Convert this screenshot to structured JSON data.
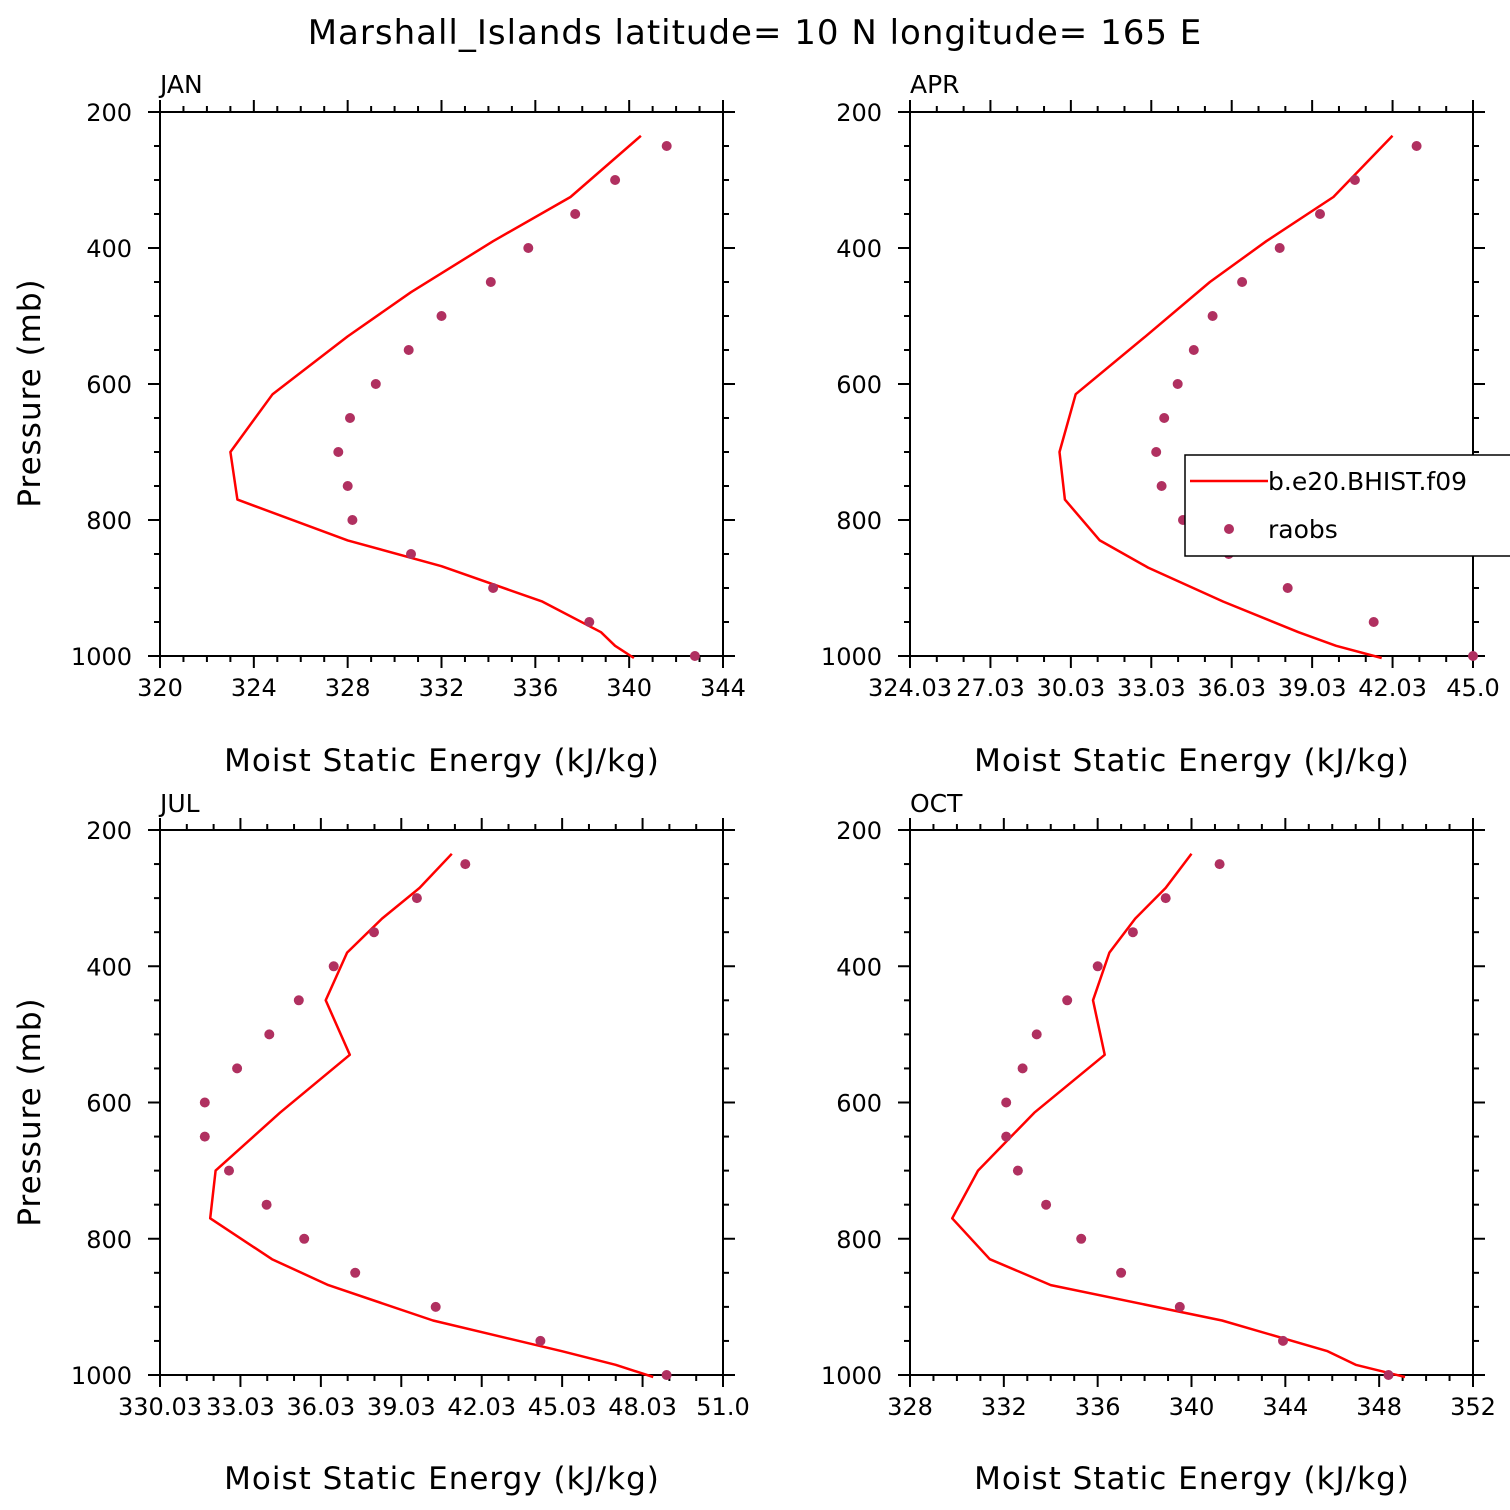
{
  "title": "Marshall_Islands  latitude= 10 N longitude= 165 E",
  "colors": {
    "model": "#ff0000",
    "obs": "#b03060",
    "axes": "#000000"
  },
  "legend": {
    "model_label": "b.e20.BHIST.f09",
    "obs_label": "raobs",
    "placement": "right-middle of APR panel"
  },
  "chart_data": [
    {
      "type": "line",
      "panel": "JAN",
      "xlabel": "Moist Static Energy (kJ/kg)",
      "ylabel": "Pressure (mb)",
      "xlim": [
        320,
        344
      ],
      "ylim": [
        1000,
        200
      ],
      "xtick_labels": [
        "320",
        "324",
        "328",
        "332",
        "336",
        "340",
        "344"
      ],
      "ytick_labels": [
        "200",
        "400",
        "600",
        "800",
        "1000"
      ],
      "series": [
        {
          "kind": "line",
          "pressure": [
            235,
            325,
            390,
            465,
            530,
            615,
            700,
            770,
            830,
            868,
            920,
            965,
            985,
            1003
          ],
          "values": [
            340.5,
            337.5,
            334.2,
            330.7,
            328.0,
            324.8,
            323.0,
            323.3,
            328.0,
            332.0,
            336.3,
            338.8,
            339.4,
            340.2
          ]
        },
        {
          "kind": "scatter",
          "pressure": [
            250,
            300,
            350,
            400,
            450,
            500,
            550,
            600,
            650,
            700,
            750,
            800,
            850,
            900,
            950,
            1000
          ],
          "values": [
            341.6,
            339.4,
            337.7,
            335.7,
            334.1,
            332.0,
            330.6,
            329.2,
            328.1,
            327.6,
            328.0,
            328.2,
            330.7,
            334.2,
            338.3,
            342.8
          ]
        }
      ]
    },
    {
      "type": "line",
      "panel": "APR",
      "xlabel": "Moist Static Energy (kJ/kg)",
      "ylabel": "",
      "xlim": [
        324.03,
        345.0
      ],
      "ylim": [
        1000,
        200
      ],
      "xtick_labels": [
        "324.03",
        "27.03",
        "30.03",
        "33.03",
        "36.03",
        "39.03",
        "42.03",
        "45.0"
      ],
      "ytick_labels": [
        "200",
        "400",
        "600",
        "800",
        "1000"
      ],
      "series": [
        {
          "kind": "line",
          "pressure": [
            235,
            325,
            390,
            450,
            530,
            615,
            700,
            770,
            830,
            870,
            920,
            965,
            985,
            1003
          ],
          "values": [
            342.0,
            339.8,
            337.3,
            335.2,
            332.8,
            330.2,
            329.6,
            329.8,
            331.1,
            332.9,
            335.7,
            338.5,
            339.9,
            341.6
          ]
        },
        {
          "kind": "scatter",
          "pressure": [
            250,
            300,
            350,
            400,
            450,
            500,
            550,
            600,
            650,
            700,
            750,
            800,
            850,
            900,
            950,
            1000
          ],
          "values": [
            342.9,
            340.6,
            339.3,
            337.8,
            336.4,
            335.3,
            334.6,
            334.0,
            333.5,
            333.2,
            333.4,
            334.2,
            335.9,
            338.1,
            341.3,
            345.0
          ]
        }
      ]
    },
    {
      "type": "line",
      "panel": "JUL",
      "xlabel": "Moist Static Energy (kJ/kg)",
      "ylabel": "Pressure (mb)",
      "xlim": [
        330.03,
        351.0
      ],
      "ylim": [
        1000,
        200
      ],
      "xtick_labels": [
        "330.03",
        "33.03",
        "36.03",
        "39.03",
        "42.03",
        "45.03",
        "48.03",
        "51.0"
      ],
      "ytick_labels": [
        "200",
        "400",
        "600",
        "800",
        "1000"
      ],
      "series": [
        {
          "kind": "line",
          "pressure": [
            235,
            285,
            330,
            380,
            450,
            530,
            615,
            700,
            770,
            830,
            868,
            920,
            965,
            985,
            1003
          ],
          "values": [
            340.9,
            339.7,
            338.3,
            337.0,
            336.2,
            337.1,
            334.5,
            332.1,
            331.9,
            334.2,
            336.3,
            340.2,
            345.0,
            347.0,
            348.4
          ]
        },
        {
          "kind": "scatter",
          "pressure": [
            250,
            300,
            350,
            400,
            450,
            500,
            550,
            600,
            650,
            700,
            750,
            800,
            850,
            900,
            950,
            1000
          ],
          "values": [
            341.4,
            339.6,
            338.0,
            336.5,
            335.2,
            334.1,
            332.9,
            331.7,
            331.7,
            332.6,
            334.0,
            335.4,
            337.3,
            340.3,
            344.2,
            348.9
          ]
        }
      ]
    },
    {
      "type": "line",
      "panel": "OCT",
      "xlabel": "Moist Static Energy (kJ/kg)",
      "ylabel": "",
      "xlim": [
        328,
        352
      ],
      "ylim": [
        1000,
        200
      ],
      "xtick_labels": [
        "328",
        "332",
        "336",
        "340",
        "344",
        "348",
        "352"
      ],
      "ytick_labels": [
        "200",
        "400",
        "600",
        "800",
        "1000"
      ],
      "series": [
        {
          "kind": "line",
          "pressure": [
            235,
            285,
            330,
            380,
            450,
            530,
            615,
            700,
            770,
            830,
            868,
            920,
            965,
            985,
            1003
          ],
          "values": [
            340.0,
            338.9,
            337.6,
            336.5,
            335.8,
            336.3,
            333.3,
            330.9,
            329.8,
            331.4,
            334.0,
            341.3,
            345.8,
            347.0,
            349.1
          ]
        },
        {
          "kind": "scatter",
          "pressure": [
            250,
            300,
            350,
            400,
            450,
            500,
            550,
            600,
            650,
            700,
            750,
            800,
            850,
            900,
            950,
            1000
          ],
          "values": [
            341.2,
            338.9,
            337.5,
            336.0,
            334.7,
            333.4,
            332.8,
            332.1,
            332.1,
            332.6,
            333.8,
            335.3,
            337.0,
            339.5,
            343.9,
            348.4
          ]
        }
      ]
    }
  ]
}
